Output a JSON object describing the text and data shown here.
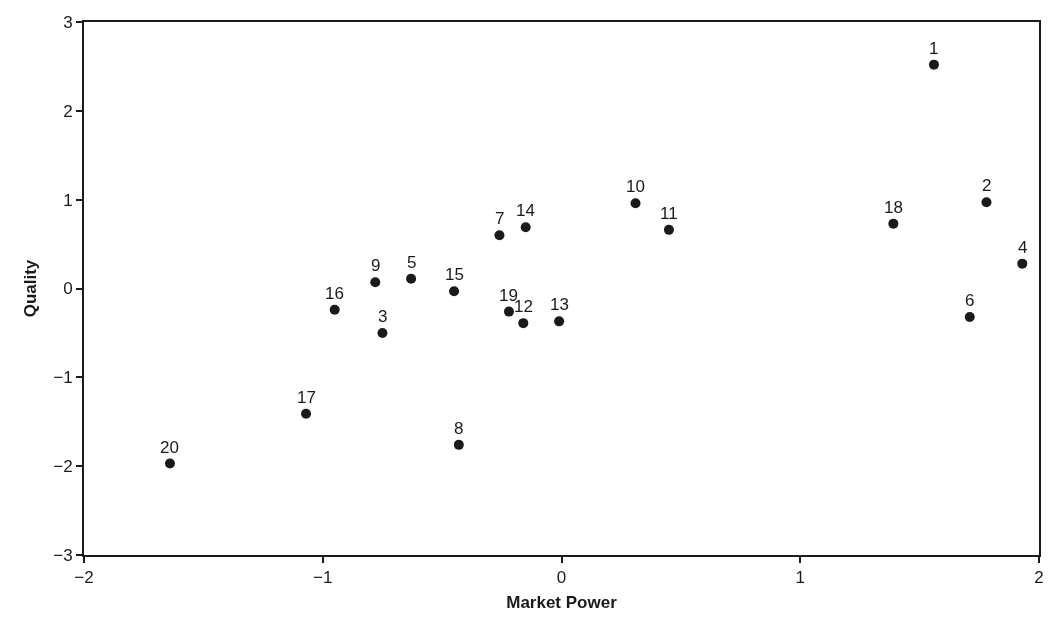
{
  "chart_data": {
    "type": "scatter",
    "xlabel": "Market Power",
    "ylabel": "Quality",
    "x": [
      1.56,
      1.78,
      -0.75,
      1.93,
      -0.63,
      1.71,
      -0.26,
      -0.43,
      -0.78,
      0.31,
      0.45,
      -0.16,
      -0.01,
      -0.15,
      -0.45,
      -0.95,
      -1.07,
      1.39,
      -0.22,
      -1.64
    ],
    "values": [
      2.52,
      0.97,
      -0.5,
      0.28,
      0.11,
      -0.32,
      0.6,
      -1.76,
      0.07,
      0.96,
      0.66,
      -0.39,
      -0.37,
      0.69,
      -0.03,
      -0.24,
      -1.41,
      0.73,
      -0.26,
      -1.97
    ],
    "annotations": [
      {
        "text": "1",
        "x": 1.56,
        "y": 2.52
      },
      {
        "text": "2",
        "x": 1.78,
        "y": 0.97
      },
      {
        "text": "3",
        "x": -0.75,
        "y": -0.5
      },
      {
        "text": "4",
        "x": 1.93,
        "y": 0.28
      },
      {
        "text": "5",
        "x": -0.63,
        "y": 0.11
      },
      {
        "text": "6",
        "x": 1.71,
        "y": -0.32
      },
      {
        "text": "7",
        "x": -0.26,
        "y": 0.6
      },
      {
        "text": "8",
        "x": -0.43,
        "y": -1.76
      },
      {
        "text": "9",
        "x": -0.78,
        "y": 0.07
      },
      {
        "text": "10",
        "x": 0.31,
        "y": 0.96
      },
      {
        "text": "11",
        "x": 0.45,
        "y": 0.66
      },
      {
        "text": "12",
        "x": -0.16,
        "y": -0.39
      },
      {
        "text": "13",
        "x": -0.01,
        "y": -0.37
      },
      {
        "text": "14",
        "x": -0.15,
        "y": 0.69
      },
      {
        "text": "15",
        "x": -0.45,
        "y": -0.03
      },
      {
        "text": "16",
        "x": -0.95,
        "y": -0.24
      },
      {
        "text": "17",
        "x": -1.07,
        "y": -1.41
      },
      {
        "text": "18",
        "x": 1.39,
        "y": 0.73
      },
      {
        "text": "19",
        "x": -0.22,
        "y": -0.26
      },
      {
        "text": "20",
        "x": -1.64,
        "y": -1.97
      }
    ],
    "color": "#1a1a1a",
    "marker": "circle",
    "grid": false,
    "xlim": [
      -2,
      2
    ],
    "xticks": [
      {
        "value": -2,
        "label": "−2"
      },
      {
        "value": -1,
        "label": "−1"
      },
      0,
      1,
      2
    ],
    "ylim": [
      -3,
      3
    ],
    "yticks": [
      {
        "value": -3,
        "label": "−3"
      },
      {
        "value": -2,
        "label": "−2"
      },
      {
        "value": -1,
        "label": "−1"
      },
      0,
      1,
      2,
      3
    ]
  }
}
